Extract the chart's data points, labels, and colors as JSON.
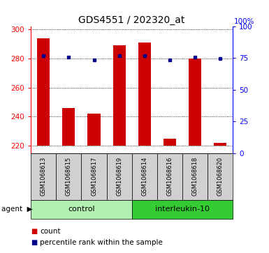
{
  "title": "GDS4551 / 202320_at",
  "samples": [
    "GSM1068613",
    "GSM1068615",
    "GSM1068617",
    "GSM1068619",
    "GSM1068614",
    "GSM1068616",
    "GSM1068618",
    "GSM1068620"
  ],
  "counts": [
    294,
    246,
    242,
    289,
    291,
    225,
    280,
    222
  ],
  "percentile_ranks": [
    282,
    281,
    279,
    282,
    282,
    279,
    281,
    280
  ],
  "bar_color": "#cc0000",
  "dot_color": "#00008b",
  "ylim_left": [
    215,
    302
  ],
  "ylim_right": [
    0,
    100
  ],
  "yticks_left": [
    220,
    240,
    260,
    280,
    300
  ],
  "yticks_right": [
    0,
    25,
    50,
    75,
    100
  ],
  "title_fontsize": 10,
  "legend_count_label": "count",
  "legend_pct_label": "percentile rank within the sample",
  "group_label_control": "control",
  "group_label_interleukin": "interleukin-10",
  "agent_label": "agent",
  "control_color": "#b2f0b2",
  "il10_color": "#33cc33",
  "sample_box_color": "#d0d0d0",
  "background_color": "#ffffff",
  "bar_width": 0.5,
  "base_value": 220
}
